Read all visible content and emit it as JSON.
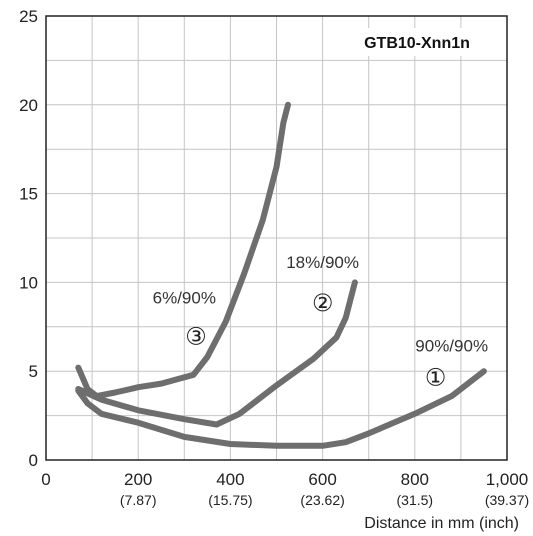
{
  "chart_data": {
    "type": "line",
    "title": "GTB10-Xnn1n",
    "xlabel": "Distance in mm (inch)",
    "ylabel": "",
    "xlim": [
      0,
      1000
    ],
    "ylim": [
      0,
      25
    ],
    "grid": true,
    "x_ticks": [
      {
        "value": 0,
        "label": "0",
        "sub": ""
      },
      {
        "value": 200,
        "label": "200",
        "sub": "(7.87)"
      },
      {
        "value": 400,
        "label": "400",
        "sub": "(15.75)"
      },
      {
        "value": 600,
        "label": "600",
        "sub": "(23.62)"
      },
      {
        "value": 800,
        "label": "800",
        "sub": "(31.5)"
      },
      {
        "value": 1000,
        "label": "1,000",
        "sub": "(39.37)"
      }
    ],
    "y_ticks": [
      {
        "value": 0,
        "label": "0"
      },
      {
        "value": 5,
        "label": "5"
      },
      {
        "value": 10,
        "label": "10"
      },
      {
        "value": 15,
        "label": "15"
      },
      {
        "value": 20,
        "label": "20"
      },
      {
        "value": 25,
        "label": "25"
      }
    ],
    "series": [
      {
        "marker": "①",
        "label": "90%/90%",
        "points": [
          [
            70,
            3.9
          ],
          [
            90,
            3.2
          ],
          [
            120,
            2.6
          ],
          [
            200,
            2.1
          ],
          [
            300,
            1.3
          ],
          [
            400,
            0.9
          ],
          [
            500,
            0.8
          ],
          [
            600,
            0.8
          ],
          [
            650,
            1.0
          ],
          [
            700,
            1.5
          ],
          [
            800,
            2.6
          ],
          [
            880,
            3.6
          ],
          [
            950,
            5.0
          ]
        ]
      },
      {
        "marker": "②",
        "label": "18%/90%",
        "points": [
          [
            70,
            4.0
          ],
          [
            120,
            3.4
          ],
          [
            200,
            2.8
          ],
          [
            300,
            2.3
          ],
          [
            370,
            2.0
          ],
          [
            420,
            2.6
          ],
          [
            500,
            4.2
          ],
          [
            580,
            5.7
          ],
          [
            630,
            6.9
          ],
          [
            650,
            8.0
          ],
          [
            670,
            10.0
          ]
        ]
      },
      {
        "marker": "③",
        "label": "6%/90%",
        "points": [
          [
            70,
            5.2
          ],
          [
            90,
            4.0
          ],
          [
            110,
            3.6
          ],
          [
            150,
            3.8
          ],
          [
            200,
            4.1
          ],
          [
            250,
            4.3
          ],
          [
            320,
            4.8
          ],
          [
            350,
            5.8
          ],
          [
            390,
            7.8
          ],
          [
            430,
            10.5
          ],
          [
            470,
            13.5
          ],
          [
            500,
            16.5
          ],
          [
            515,
            19.0
          ],
          [
            525,
            20.0
          ]
        ]
      }
    ],
    "colors": {
      "line": "#6e6e6e",
      "grid": "#c4c4c4",
      "axis": "#222222"
    }
  }
}
